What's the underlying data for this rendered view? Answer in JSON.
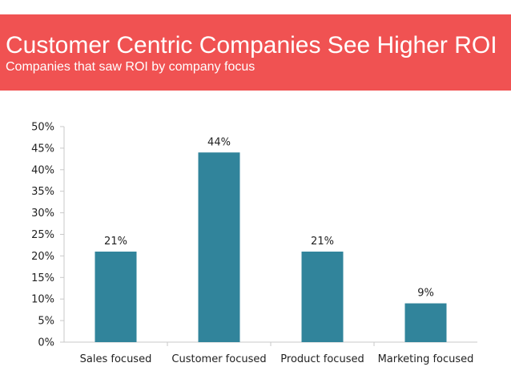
{
  "slide": {
    "title": "Customer Centric Companies See Higher ROI",
    "subtitle": "Companies that saw ROI by company focus",
    "header_color": "#f05252"
  },
  "chart_data": {
    "type": "bar",
    "title": "",
    "xlabel": "",
    "ylabel": "",
    "categories": [
      "Sales focused",
      "Customer focused",
      "Product focused",
      "Marketing focused"
    ],
    "values": [
      21,
      44,
      21,
      9
    ],
    "data_labels": [
      "21%",
      "44%",
      "21%",
      "9%"
    ],
    "ylim": [
      0,
      50
    ],
    "y_ticks": [
      0,
      5,
      10,
      15,
      20,
      25,
      30,
      35,
      40,
      45,
      50
    ],
    "y_tick_labels": [
      "0%",
      "5%",
      "10%",
      "15%",
      "20%",
      "25%",
      "30%",
      "35%",
      "40%",
      "45%",
      "50%"
    ],
    "grid": false,
    "legend": "none",
    "bar_color": "#31849b"
  }
}
